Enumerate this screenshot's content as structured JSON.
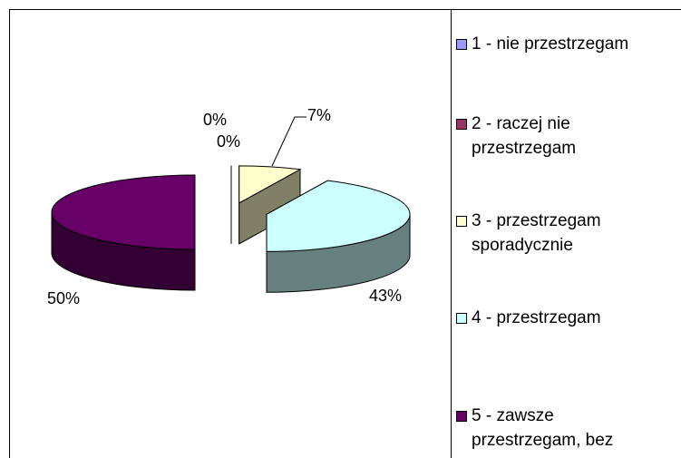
{
  "chart_data": {
    "type": "pie",
    "three_d": true,
    "exploded": true,
    "categories": [
      "1 - nie przestrzegam",
      "2 - raczej nie przestrzegam",
      "3 - przestrzegam sporadycznie",
      "4 - przestrzegam",
      "5 - zawsze przestrzegam, bez"
    ],
    "values": [
      0,
      0,
      7,
      43,
      50
    ],
    "value_labels": [
      "0%",
      "0%",
      "7%",
      "43%",
      "50%"
    ],
    "colors": [
      "#9999ff",
      "#993366",
      "#ffffcc",
      "#ccffff",
      "#660066"
    ],
    "legend": "right"
  }
}
